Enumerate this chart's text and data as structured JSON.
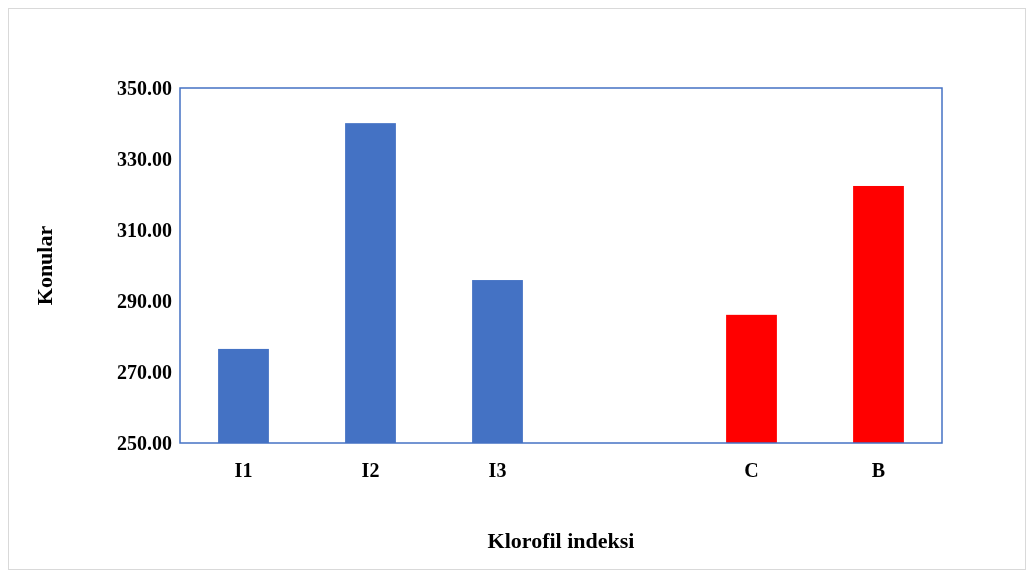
{
  "chart_data": {
    "type": "bar",
    "xlabel": "Klorofil indeksi",
    "ylabel": "Konular",
    "categories": [
      "I1",
      "I2",
      "I3",
      null,
      "C",
      "B"
    ],
    "values": [
      276.5,
      340.1,
      295.9,
      null,
      286.1,
      322.4
    ],
    "colors": [
      "#4472c4",
      "#4472c4",
      "#4472c4",
      null,
      "#ff0000",
      "#ff0000"
    ],
    "ylim": [
      250,
      350
    ],
    "yticks": [
      {
        "value": 250,
        "label": "250.00"
      },
      {
        "value": 270,
        "label": "270.00"
      },
      {
        "value": 290,
        "label": "290.00"
      },
      {
        "value": 310,
        "label": "310.00"
      },
      {
        "value": 330,
        "label": "330.00"
      },
      {
        "value": 350,
        "label": "350.00"
      }
    ],
    "grid": false
  }
}
